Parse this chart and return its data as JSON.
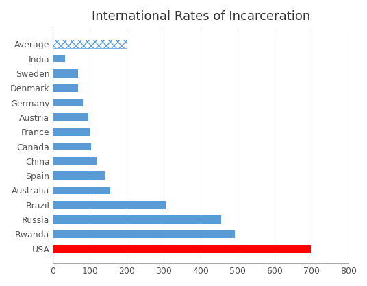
{
  "countries": [
    "Average",
    "India",
    "Sweden",
    "Denmark",
    "Germany",
    "Austria",
    "France",
    "Canada",
    "China",
    "Spain",
    "Australia",
    "Brazil",
    "Russia",
    "Rwanda",
    "USA"
  ],
  "values": [
    200,
    33,
    67,
    67,
    80,
    96,
    100,
    104,
    118,
    140,
    155,
    305,
    455,
    492,
    698
  ],
  "title": "International Rates of Incarceration",
  "xlim": [
    0,
    800
  ],
  "xticks": [
    0,
    100,
    200,
    300,
    400,
    500,
    600,
    700,
    800
  ],
  "blue_color": "#5B9BD5",
  "red_color": "#FF0000",
  "hatch_pattern": "xxx",
  "background_color": "#FFFFFF",
  "grid_color": "#D0D0D0",
  "title_fontsize": 13,
  "bar_height": 0.55
}
